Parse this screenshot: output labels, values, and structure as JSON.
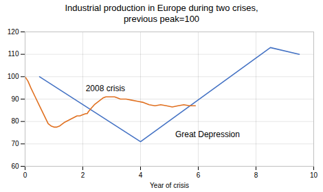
{
  "chart_data": {
    "type": "line",
    "title": "Industrial production in Europe during two crises,\nprevious peak=100",
    "xlabel": "Year of crisis",
    "xlim": [
      0,
      10
    ],
    "ylim": [
      60,
      120
    ],
    "xticks": [
      0,
      2,
      4,
      6,
      8,
      10
    ],
    "yticks": [
      60,
      70,
      80,
      90,
      100,
      110,
      120
    ],
    "grid": true,
    "series": [
      {
        "name": "Great Depression",
        "color": "#4472c4",
        "x": [
          0.5,
          4.0,
          8.5,
          9.5
        ],
        "values": [
          100,
          71,
          113,
          110
        ]
      },
      {
        "name": "2008 crisis",
        "color": "#e07020",
        "x": [
          0.0,
          0.1,
          0.2,
          0.35,
          0.5,
          0.65,
          0.8,
          0.9,
          1.0,
          1.1,
          1.2,
          1.35,
          1.5,
          1.65,
          1.8,
          1.9,
          2.0,
          2.1,
          2.15,
          2.2,
          2.3,
          2.4,
          2.5,
          2.6,
          2.7,
          2.8,
          2.9,
          3.0,
          3.1,
          3.2,
          3.3,
          3.5,
          3.7,
          3.9,
          4.1,
          4.3,
          4.5,
          4.7,
          4.9,
          5.1,
          5.3,
          5.5,
          5.7,
          5.9
        ],
        "values": [
          100,
          98,
          95,
          91,
          87,
          83,
          79,
          78,
          77.5,
          77.5,
          78,
          79.5,
          80.5,
          81.5,
          82.5,
          82.5,
          83,
          83.5,
          83.5,
          84.5,
          86,
          87.5,
          88.5,
          89.5,
          90.5,
          91,
          91,
          91,
          91,
          90.5,
          90,
          90,
          89.5,
          89,
          88.5,
          87.5,
          87,
          87.5,
          87,
          86.5,
          87,
          87.5,
          87,
          87
        ]
      }
    ],
    "annotations": [
      {
        "text": "2008 crisis",
        "x": 2.1,
        "y": 93.5
      },
      {
        "text": "Great Depression",
        "x": 5.2,
        "y": 73
      }
    ]
  }
}
